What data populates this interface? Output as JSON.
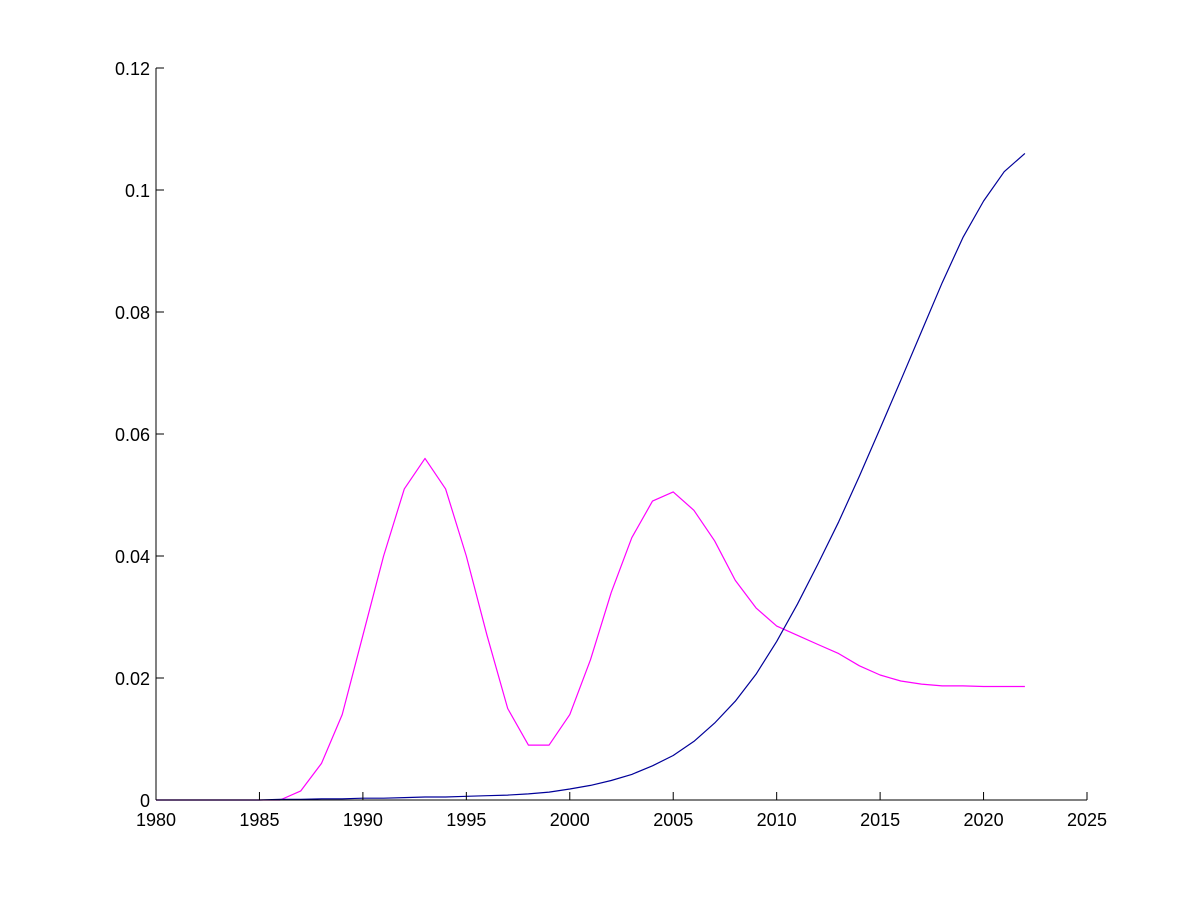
{
  "chart_data": {
    "type": "line",
    "title": "",
    "xlabel": "",
    "ylabel": "",
    "xlim": [
      1980,
      2025
    ],
    "ylim": [
      0,
      0.12
    ],
    "grid": false,
    "legend": "none",
    "x_ticks": [
      "1980",
      "1985",
      "1990",
      "1995",
      "2000",
      "2005",
      "2010",
      "2015",
      "2020",
      "2025"
    ],
    "y_ticks": [
      "0",
      "0.02",
      "0.04",
      "0.06",
      "0.08",
      "0.1",
      "0.12"
    ],
    "series": [
      {
        "color": "#ff00ff",
        "x": [
          1980,
          1981,
          1982,
          1983,
          1984,
          1985,
          1986,
          1987,
          1988,
          1989,
          1990,
          1991,
          1992,
          1993,
          1994,
          1995,
          1996,
          1997,
          1998,
          1999,
          2000,
          2001,
          2002,
          2003,
          2004,
          2005,
          2006,
          2007,
          2008,
          2009,
          2010,
          2011,
          2012,
          2013,
          2014,
          2015,
          2016,
          2017,
          2018,
          2019,
          2020,
          2021,
          2022
        ],
        "values": [
          0,
          0,
          0,
          0,
          0,
          0,
          0,
          0.0015,
          0.006,
          0.014,
          0.027,
          0.04,
          0.051,
          0.056,
          0.051,
          0.04,
          0.027,
          0.015,
          0.009,
          0.009,
          0.014,
          0.023,
          0.034,
          0.043,
          0.049,
          0.0505,
          0.0475,
          0.0425,
          0.036,
          0.0315,
          0.0285,
          0.027,
          0.0255,
          0.024,
          0.022,
          0.0205,
          0.0195,
          0.019,
          0.0187,
          0.0187,
          0.0186,
          0.0186,
          0.0186
        ]
      },
      {
        "color": "#000099",
        "x": [
          1980,
          1981,
          1982,
          1983,
          1984,
          1985,
          1986,
          1987,
          1988,
          1989,
          1990,
          1991,
          1992,
          1993,
          1994,
          1995,
          1996,
          1997,
          1998,
          1999,
          2000,
          2001,
          2002,
          2003,
          2004,
          2005,
          2006,
          2007,
          2008,
          2009,
          2010,
          2011,
          2012,
          2013,
          2014,
          2015,
          2016,
          2017,
          2018,
          2019,
          2020,
          2021,
          2022
        ],
        "values": [
          0,
          0,
          0,
          0,
          0,
          0,
          0.0001,
          0.0001,
          0.0002,
          0.0002,
          0.0003,
          0.0003,
          0.0004,
          0.0005,
          0.0005,
          0.0006,
          0.0007,
          0.0008,
          0.001,
          0.0013,
          0.0018,
          0.0024,
          0.0032,
          0.0042,
          0.0056,
          0.0073,
          0.0096,
          0.0126,
          0.0162,
          0.0206,
          0.026,
          0.0321,
          0.0387,
          0.0456,
          0.0531,
          0.0609,
          0.0688,
          0.0768,
          0.0848,
          0.0922,
          0.0982,
          0.103,
          0.106
        ]
      }
    ]
  }
}
